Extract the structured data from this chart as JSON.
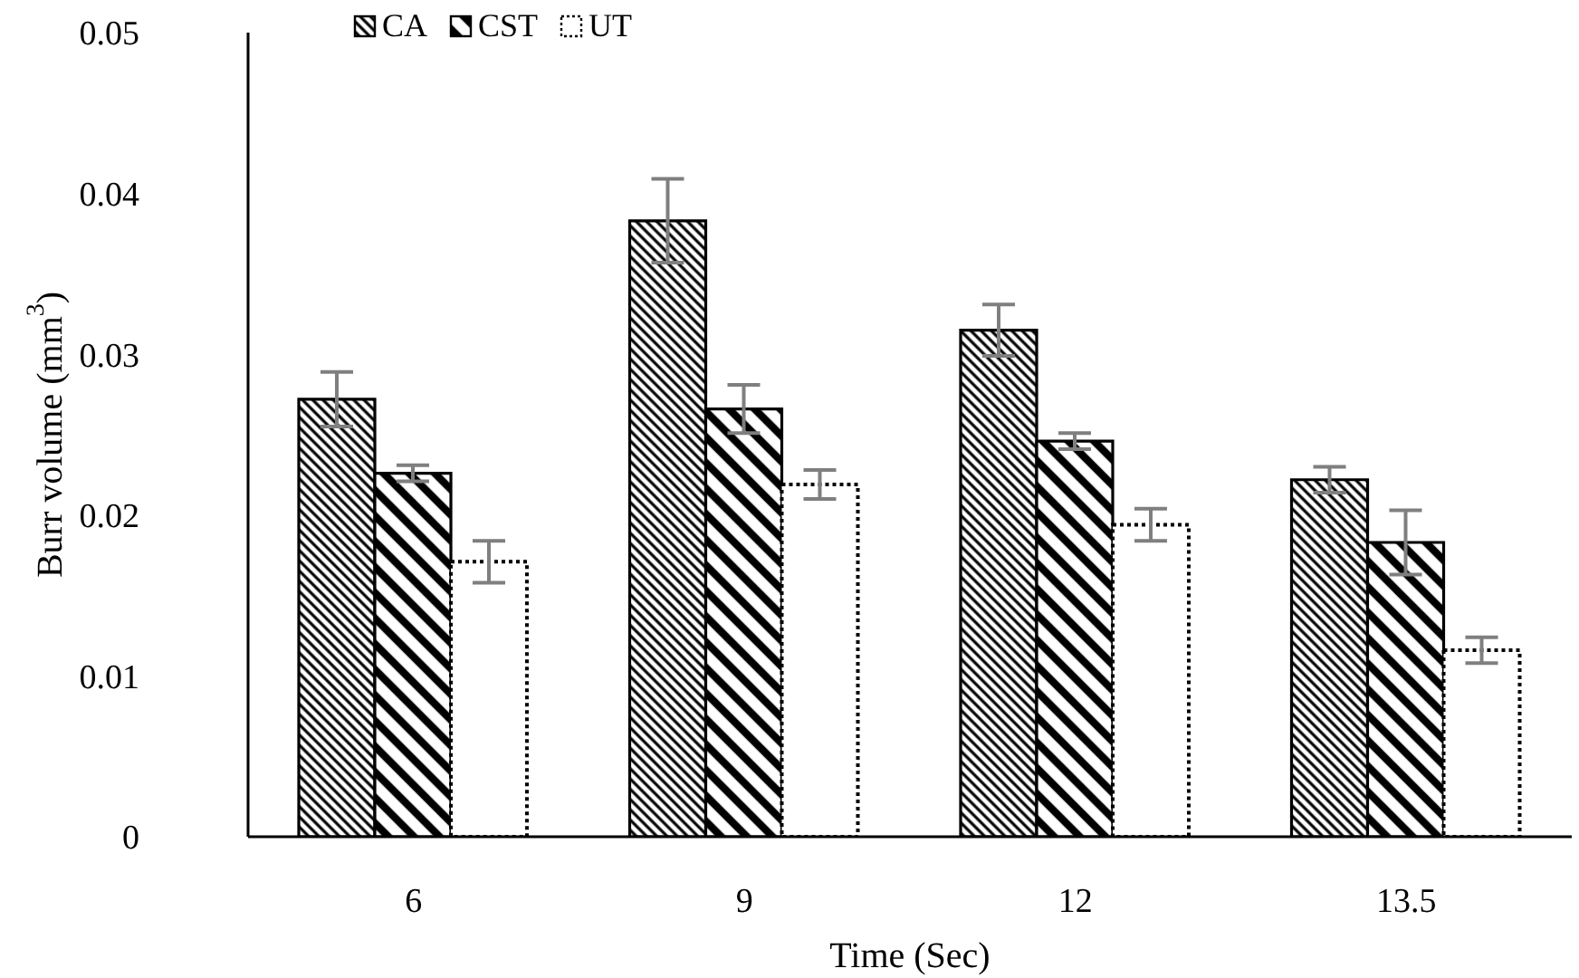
{
  "chart_data": {
    "type": "bar",
    "xlabel": "Time (Sec)",
    "ylabel": "Burr volume (mm$^{3}$)",
    "categories": [
      "6",
      "9",
      "12",
      "13.5"
    ],
    "series": [
      {
        "name": "CA",
        "color": "#000000",
        "values": [
          0.0272,
          0.0383,
          0.0315,
          0.0222
        ],
        "errors": [
          0.0017,
          0.0026,
          0.0016,
          0.0008
        ]
      },
      {
        "name": "CST",
        "color": "#000000",
        "values": [
          0.0226,
          0.0266,
          0.0246,
          0.0183
        ],
        "errors": [
          0.0005,
          0.0015,
          0.0005,
          0.002
        ]
      },
      {
        "name": "UT",
        "color": "#ffffff",
        "line_style": "dotted",
        "values": [
          0.0171,
          0.0219,
          0.0194,
          0.0116
        ],
        "errors": [
          0.0013,
          0.0009,
          0.001,
          0.0008
        ]
      }
    ],
    "ylim": [
      0,
      0.05
    ],
    "yticks": [
      0,
      0.01,
      0.02,
      0.03,
      0.04,
      0.05
    ],
    "legend": "top left"
  }
}
